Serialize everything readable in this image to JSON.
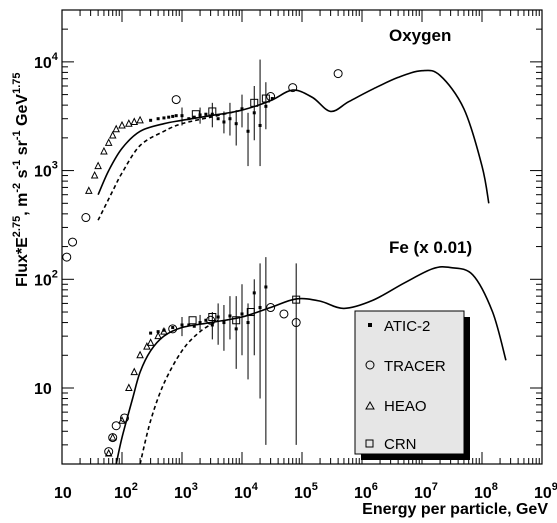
{
  "chart_data": {
    "type": "scatter",
    "x_scale": "log",
    "y_scale": "log",
    "xlim": [
      10,
      1000000000
    ],
    "ylim": [
      2,
      30000
    ],
    "grid": false,
    "xlabel": "Energy per particle, GeV",
    "ylabel_parts": {
      "a": "Flux*E",
      "a_sup": "2.75",
      "b": ", m",
      "b_sup": "-2",
      "c": " s",
      "c_sup": "-1",
      "d": " sr",
      "d_sup": "-1",
      "e": " GeV",
      "e_sup": "1.75"
    },
    "x_ticks": [
      {
        "value": 10,
        "base": "10",
        "exp": ""
      },
      {
        "value": 100,
        "base": "10",
        "exp": "2"
      },
      {
        "value": 1000,
        "base": "10",
        "exp": "3"
      },
      {
        "value": 10000,
        "base": "10",
        "exp": "4"
      },
      {
        "value": 100000,
        "base": "10",
        "exp": "5"
      },
      {
        "value": 1000000,
        "base": "10",
        "exp": "6"
      },
      {
        "value": 10000000,
        "base": "10",
        "exp": "7"
      },
      {
        "value": 100000000,
        "base": "10",
        "exp": "8"
      },
      {
        "value": 1000000000,
        "base": "10",
        "exp": "9"
      }
    ],
    "y_ticks": [
      {
        "value": 10,
        "base": "10",
        "exp": ""
      },
      {
        "value": 100,
        "base": "10",
        "exp": "2"
      },
      {
        "value": 1000,
        "base": "10",
        "exp": "3"
      },
      {
        "value": 10000,
        "base": "10",
        "exp": "4"
      }
    ],
    "annotations": [
      {
        "text": "Oxygen",
        "x": 5000000,
        "y": 12000
      },
      {
        "text": "Fe (x 0.01)",
        "x": 9000000,
        "y": 150
      }
    ],
    "legend": {
      "placement": "lower-right",
      "entries": [
        {
          "marker": "filled-square",
          "label": "ATIC-2"
        },
        {
          "marker": "open-circle",
          "label": "TRACER"
        },
        {
          "marker": "open-triangle",
          "label": "HEAO"
        },
        {
          "marker": "open-square",
          "label": "CRN"
        }
      ]
    },
    "colors": {
      "ink": "#000000",
      "legend_bg": "#e6e6e6"
    },
    "curves": [
      {
        "name": "oxygen-solid",
        "style": "solid",
        "points": [
          [
            40,
            600
          ],
          [
            60,
            1000
          ],
          [
            100,
            1600
          ],
          [
            200,
            2300
          ],
          [
            500,
            2700
          ],
          [
            1000,
            2900
          ],
          [
            3000,
            3200
          ],
          [
            10000,
            3600
          ],
          [
            30000,
            4400
          ],
          [
            70000,
            5500
          ],
          [
            150000,
            4700
          ],
          [
            300000,
            3500
          ],
          [
            600000,
            4300
          ],
          [
            1500000,
            5600
          ],
          [
            4000000,
            7200
          ],
          [
            10000000,
            8300
          ],
          [
            20000000,
            7500
          ],
          [
            50000000,
            3700
          ],
          [
            100000000,
            1100
          ],
          [
            130000000,
            500
          ]
        ]
      },
      {
        "name": "oxygen-dashed",
        "style": "dashed",
        "points": [
          [
            40,
            350
          ],
          [
            70,
            650
          ],
          [
            100,
            950
          ],
          [
            200,
            1700
          ],
          [
            500,
            2300
          ],
          [
            1000,
            2700
          ],
          [
            3000,
            3100
          ],
          [
            10000,
            3600
          ]
        ]
      },
      {
        "name": "fe-solid",
        "style": "solid",
        "points": [
          [
            80,
            2
          ],
          [
            100,
            3.5
          ],
          [
            150,
            8
          ],
          [
            200,
            14
          ],
          [
            300,
            22
          ],
          [
            500,
            30
          ],
          [
            1000,
            36
          ],
          [
            3000,
            40
          ],
          [
            10000,
            45
          ],
          [
            30000,
            55
          ],
          [
            80000,
            66
          ],
          [
            200000,
            63
          ],
          [
            500000,
            54
          ],
          [
            1500000,
            64
          ],
          [
            5000000,
            92
          ],
          [
            15000000,
            125
          ],
          [
            30000000,
            128
          ],
          [
            70000000,
            110
          ],
          [
            150000000,
            50
          ],
          [
            250000000,
            18
          ]
        ]
      },
      {
        "name": "fe-dashed",
        "style": "dashed",
        "points": [
          [
            200,
            2
          ],
          [
            300,
            5
          ],
          [
            500,
            11
          ],
          [
            1000,
            22
          ],
          [
            2000,
            33
          ],
          [
            4000,
            42
          ]
        ]
      }
    ],
    "series": [
      {
        "name": "ATIC-2",
        "marker": "filled-square",
        "points": [
          [
            300,
            2900
          ],
          [
            400,
            3000
          ],
          [
            500,
            3050
          ],
          [
            600,
            3100
          ],
          [
            700,
            3150
          ],
          [
            800,
            3200
          ],
          [
            1000,
            3200
          ],
          [
            1300,
            3000
          ],
          [
            1600,
            3100
          ],
          [
            2000,
            3250
          ],
          [
            2500,
            3300
          ],
          [
            3200,
            3300
          ],
          [
            4000,
            3000
          ],
          [
            5000,
            2800
          ],
          [
            6300,
            3000
          ],
          [
            8000,
            2700
          ],
          [
            10000,
            3700
          ],
          [
            12600,
            2300
          ],
          [
            16000,
            3400
          ],
          [
            20000,
            2600
          ],
          [
            25000,
            3900
          ],
          [
            32000,
            4600
          ],
          [
            300,
            32
          ],
          [
            400,
            33
          ],
          [
            500,
            34
          ],
          [
            700,
            36
          ],
          [
            1000,
            38
          ],
          [
            1300,
            38
          ],
          [
            1600,
            37
          ],
          [
            2000,
            40
          ],
          [
            2500,
            42
          ],
          [
            3200,
            38
          ],
          [
            4000,
            45
          ],
          [
            5000,
            40
          ],
          [
            6300,
            46
          ],
          [
            8000,
            35
          ],
          [
            10000,
            48
          ],
          [
            12600,
            40
          ],
          [
            16000,
            75
          ],
          [
            20000,
            55
          ],
          [
            25000,
            85
          ]
        ]
      },
      {
        "name": "TRACER",
        "marker": "open-circle",
        "points": [
          [
            12,
            160
          ],
          [
            15,
            220
          ],
          [
            25,
            370
          ],
          [
            800,
            4500
          ],
          [
            30000,
            4800
          ],
          [
            70000,
            5800
          ],
          [
            400000,
            7800
          ],
          [
            60,
            2.6
          ],
          [
            70,
            3.5
          ],
          [
            80,
            4.5
          ],
          [
            110,
            5.3
          ],
          [
            700,
            35
          ],
          [
            3000,
            42
          ],
          [
            30000,
            55
          ],
          [
            50000,
            48
          ],
          [
            80000,
            40
          ]
        ]
      },
      {
        "name": "HEAO",
        "marker": "open-triangle",
        "points": [
          [
            28,
            650
          ],
          [
            35,
            900
          ],
          [
            40,
            1100
          ],
          [
            50,
            1500
          ],
          [
            60,
            1800
          ],
          [
            70,
            2100
          ],
          [
            80,
            2400
          ],
          [
            100,
            2600
          ],
          [
            130,
            2700
          ],
          [
            160,
            2800
          ],
          [
            200,
            2900
          ],
          [
            50,
            1.5
          ],
          [
            60,
            2.5
          ],
          [
            70,
            3.5
          ],
          [
            100,
            5
          ],
          [
            130,
            10
          ],
          [
            160,
            14
          ],
          [
            200,
            20
          ],
          [
            260,
            24
          ],
          [
            300,
            26
          ],
          [
            400,
            30
          ],
          [
            500,
            33
          ]
        ]
      },
      {
        "name": "CRN",
        "marker": "open-square",
        "points": [
          [
            1700,
            3300
          ],
          [
            3200,
            3500
          ],
          [
            16000,
            4200
          ],
          [
            25000,
            4600
          ],
          [
            1500,
            42
          ],
          [
            3200,
            45
          ],
          [
            8000,
            42
          ],
          [
            14000,
            50
          ],
          [
            80000,
            65
          ]
        ]
      }
    ],
    "error_bars": [
      [
        1000,
        2600,
        3800
      ],
      [
        2000,
        2700,
        3800
      ],
      [
        3200,
        2500,
        4200
      ],
      [
        5000,
        2200,
        3500
      ],
      [
        6300,
        2100,
        4200
      ],
      [
        8000,
        1700,
        3600
      ],
      [
        10000,
        2500,
        5000
      ],
      [
        12600,
        1100,
        3400
      ],
      [
        16000,
        1900,
        6000
      ],
      [
        20000,
        1100,
        10500
      ],
      [
        25000,
        2400,
        6500
      ],
      [
        1000,
        30,
        45
      ],
      [
        2000,
        34,
        47
      ],
      [
        3200,
        28,
        50
      ],
      [
        4000,
        25,
        60
      ],
      [
        5000,
        22,
        58
      ],
      [
        6300,
        28,
        70
      ],
      [
        8000,
        15,
        70
      ],
      [
        10000,
        20,
        90
      ],
      [
        12600,
        12,
        60
      ],
      [
        16000,
        20,
        100
      ],
      [
        20000,
        8,
        140
      ],
      [
        25000,
        3,
        160
      ],
      [
        80000,
        3,
        140
      ]
    ]
  }
}
